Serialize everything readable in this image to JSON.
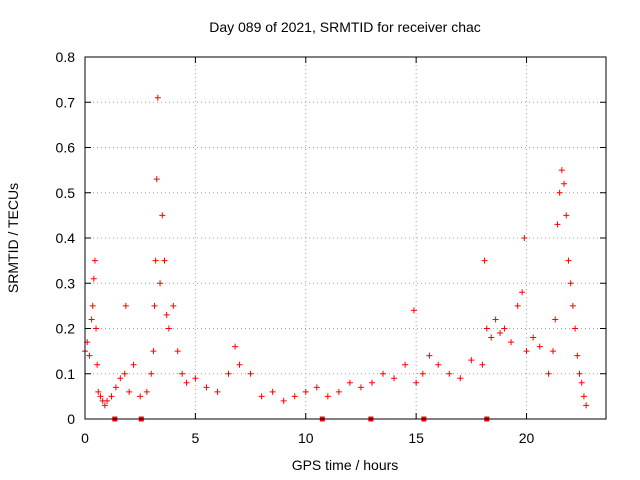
{
  "chart_data": {
    "type": "scatter",
    "title": "Day 089 of 2021, SRMTID for receiver chac",
    "xlabel": "GPS time / hours",
    "ylabel": "SRMTID / TECUs",
    "xlim": [
      0,
      23.6
    ],
    "ylim": [
      0,
      0.8
    ],
    "xticks": [
      0,
      5,
      10,
      15,
      20
    ],
    "yticks": [
      0,
      0.1,
      0.2,
      0.3,
      0.4,
      0.5,
      0.6,
      0.7,
      0.8
    ],
    "ytick_labels": [
      "0",
      "0.1",
      "0.2",
      "0.3",
      "0.4",
      "0.5",
      "0.6",
      "0.7",
      "0.8"
    ],
    "grid": true,
    "marker": "+",
    "color": "#ff0000",
    "series": [
      {
        "name": "SRMTID",
        "x": [
          0.0,
          0.1,
          0.2,
          0.3,
          0.35,
          0.4,
          0.45,
          0.5,
          0.55,
          0.6,
          0.7,
          0.8,
          0.9,
          1.0,
          1.2,
          1.4,
          1.6,
          1.8,
          1.85,
          2.0,
          2.2,
          2.5,
          2.8,
          3.0,
          3.1,
          3.15,
          3.2,
          3.25,
          3.3,
          3.4,
          3.5,
          3.6,
          3.7,
          3.8,
          4.0,
          4.2,
          4.4,
          4.6,
          5.0,
          5.5,
          6.0,
          6.5,
          6.8,
          7.0,
          7.5,
          8.0,
          8.5,
          9.0,
          9.5,
          10.0,
          10.5,
          11.0,
          11.5,
          12.0,
          12.5,
          13.0,
          13.5,
          14.0,
          14.5,
          14.9,
          15.0,
          15.3,
          15.6,
          16.0,
          16.5,
          17.0,
          17.5,
          18.0,
          18.1,
          18.2,
          18.4,
          18.6,
          18.8,
          19.0,
          19.3,
          19.6,
          19.8,
          19.9,
          20.0,
          20.3,
          20.6,
          21.0,
          21.2,
          21.3,
          21.4,
          21.5,
          21.6,
          21.7,
          21.8,
          21.9,
          22.0,
          22.1,
          22.2,
          22.3,
          22.4,
          22.5,
          22.6,
          22.7
        ],
        "y": [
          0.15,
          0.17,
          0.14,
          0.22,
          0.25,
          0.31,
          0.35,
          0.2,
          0.12,
          0.06,
          0.05,
          0.04,
          0.03,
          0.04,
          0.05,
          0.07,
          0.09,
          0.1,
          0.25,
          0.06,
          0.12,
          0.05,
          0.06,
          0.1,
          0.15,
          0.25,
          0.35,
          0.53,
          0.71,
          0.3,
          0.45,
          0.35,
          0.23,
          0.2,
          0.25,
          0.15,
          0.1,
          0.08,
          0.09,
          0.07,
          0.06,
          0.1,
          0.16,
          0.12,
          0.1,
          0.05,
          0.06,
          0.04,
          0.05,
          0.06,
          0.07,
          0.05,
          0.06,
          0.08,
          0.07,
          0.08,
          0.1,
          0.09,
          0.12,
          0.24,
          0.08,
          0.1,
          0.14,
          0.12,
          0.1,
          0.09,
          0.13,
          0.12,
          0.35,
          0.2,
          0.18,
          0.22,
          0.19,
          0.2,
          0.17,
          0.25,
          0.28,
          0.4,
          0.15,
          0.18,
          0.16,
          0.1,
          0.15,
          0.22,
          0.43,
          0.5,
          0.55,
          0.52,
          0.45,
          0.35,
          0.3,
          0.25,
          0.2,
          0.14,
          0.1,
          0.08,
          0.05,
          0.03
        ]
      }
    ],
    "baseline_marks_x": [
      1.35,
      2.55,
      10.75,
      12.95,
      15.35,
      18.2
    ]
  }
}
